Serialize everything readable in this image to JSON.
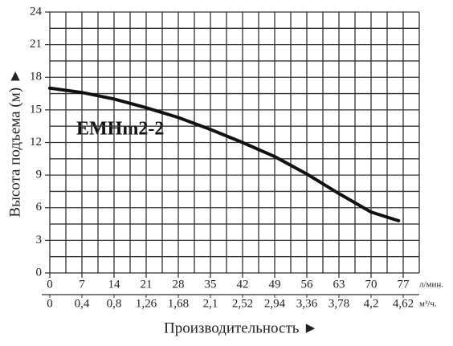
{
  "chart_data": {
    "type": "line",
    "ylabel": "Высота подъема (м) ►",
    "xlabel": "Производительность ►",
    "annotation": "EMHm2-2",
    "xunit": "л/мин.",
    "x2unit": "м³/ч.",
    "x": [
      0,
      7,
      14,
      21,
      28,
      35,
      42,
      49,
      56,
      63,
      70,
      76
    ],
    "series": [
      {
        "name": "EMHm2-2",
        "color": "#111111",
        "values": [
          17,
          16.6,
          16,
          15.2,
          14.3,
          13.2,
          12,
          10.7,
          9.1,
          7.3,
          5.6,
          4.8
        ]
      }
    ],
    "xlim": [
      0,
      80.5
    ],
    "xticks": [
      0,
      7,
      14,
      21,
      28,
      35,
      42,
      49,
      56,
      63,
      70,
      77
    ],
    "x_minor_ticks": [
      3.5,
      10.5,
      17.5,
      24.5,
      31.5,
      38.5,
      45.5,
      52.5,
      59.5,
      66.5,
      73.5,
      80.5
    ],
    "x2lim": [
      0,
      4.83
    ],
    "x2ticks": [
      0,
      {
        "value": 0.42,
        "label": "0,4"
      },
      {
        "value": 0.84,
        "label": "0,8"
      },
      {
        "value": 1.26,
        "label": "1,26"
      },
      {
        "value": 1.68,
        "label": "1,68"
      },
      {
        "value": 2.1,
        "label": "2,1"
      },
      {
        "value": 2.52,
        "label": "2,52"
      },
      {
        "value": 2.94,
        "label": "2,94"
      },
      {
        "value": 3.36,
        "label": "3,36"
      },
      {
        "value": 3.78,
        "label": "3,78"
      },
      {
        "value": 4.2,
        "label": "4,2"
      },
      {
        "value": 4.62,
        "label": "4,62"
      }
    ],
    "ylim": [
      0,
      24
    ],
    "yticks": [
      0,
      3,
      6,
      9,
      12,
      15,
      18,
      21,
      24
    ],
    "y_minor_ticks": [
      1.5,
      4.5,
      7.5,
      10.5,
      13.5,
      16.5,
      19.5,
      22.5
    ],
    "grid": true
  }
}
